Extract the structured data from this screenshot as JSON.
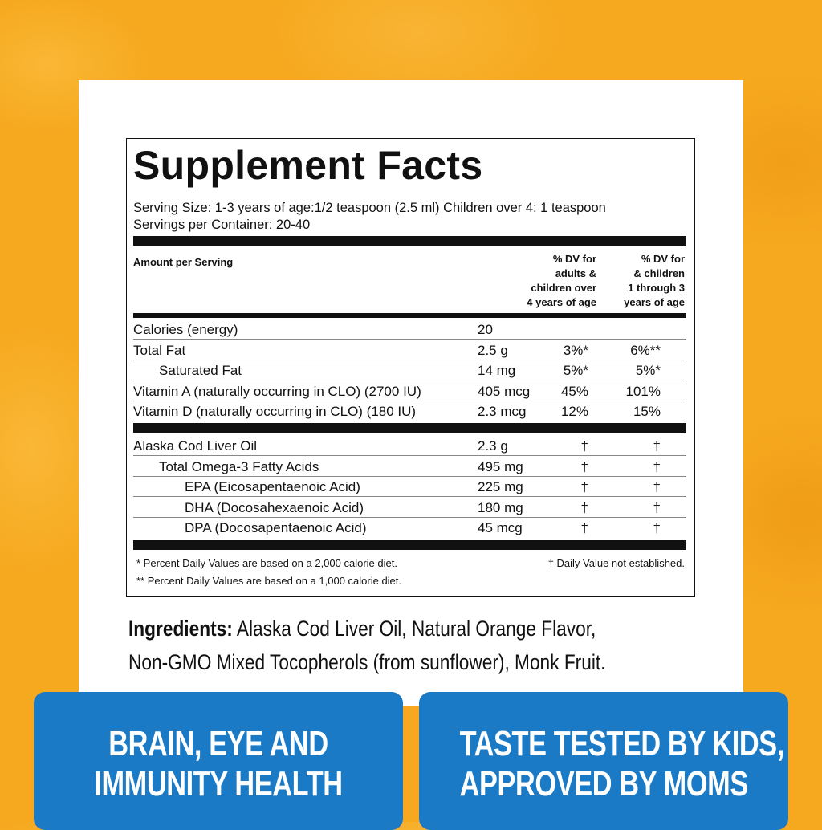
{
  "facts": {
    "title": "Supplement Facts",
    "serving_size": "Serving Size: 1-3 years of age:1/2 teaspoon (2.5 ml) Children over 4: 1 teaspoon",
    "servings_per_container": "Servings per Container: 20-40",
    "header_amount": "Amount per Serving",
    "header_dv_adults": [
      "% DV for",
      "adults &",
      "children over",
      "4 years of age"
    ],
    "header_dv_children": [
      "% DV for",
      "& children",
      "1 through 3",
      "years of age"
    ],
    "nutrients": [
      {
        "name": "Calories (energy)",
        "amount": "20",
        "dv1": "",
        "dv2": "",
        "indent": 0
      },
      {
        "name": "Total Fat",
        "amount": "2.5 g",
        "dv1": "3%*",
        "dv2": "6%**",
        "indent": 0
      },
      {
        "name": "Saturated Fat",
        "amount": "14 mg",
        "dv1": "5%*",
        "dv2": "5%*",
        "indent": 1
      },
      {
        "name": "Vitamin A (naturally occurring in CLO) (2700 IU)",
        "amount": "405 mcg",
        "dv1": "45%",
        "dv2": "101%",
        "indent": 0
      },
      {
        "name": "Vitamin D (naturally occurring in CLO) (180 IU)",
        "amount": "2.3 mcg",
        "dv1": "12%",
        "dv2": "15%",
        "indent": 0
      }
    ],
    "oils": [
      {
        "name": "Alaska Cod Liver Oil",
        "amount": "2.3 g",
        "dv1": "†",
        "dv2": "†",
        "indent": 0
      },
      {
        "name": "Total Omega-3 Fatty Acids",
        "amount": "495 mg",
        "dv1": "†",
        "dv2": "†",
        "indent": 1
      },
      {
        "name": "EPA (Eicosapentaenoic Acid)",
        "amount": "225 mg",
        "dv1": "†",
        "dv2": "†",
        "indent": 2
      },
      {
        "name": "DHA (Docosahexaenoic Acid)",
        "amount": "180 mg",
        "dv1": "†",
        "dv2": "†",
        "indent": 2
      },
      {
        "name": "DPA (Docosapentaenoic Acid)",
        "amount": "45 mcg",
        "dv1": "†",
        "dv2": "†",
        "indent": 2
      }
    ],
    "footnote_1": "* Percent Daily Values are based on a 2,000 calorie diet.",
    "footnote_2": "** Percent Daily Values are based on a 1,000 calorie diet.",
    "footnote_dagger": "† Daily Value not established."
  },
  "ingredients": {
    "label": "Ingredients:",
    "line_1": "Alaska Cod Liver Oil, Natural Orange Flavor,",
    "line_2": "Non-GMO Mixed Tocopherols (from sunflower), Monk Fruit."
  },
  "badges": [
    {
      "line_1": "BRAIN, EYE AND",
      "line_2": "IMMUNITY HEALTH"
    },
    {
      "line_1": "TASTE TESTED BY KIDS,",
      "line_2": "APPROVED BY MOMS"
    }
  ],
  "colors": {
    "background": "#f6a91f",
    "badge": "#1a7ac6"
  }
}
